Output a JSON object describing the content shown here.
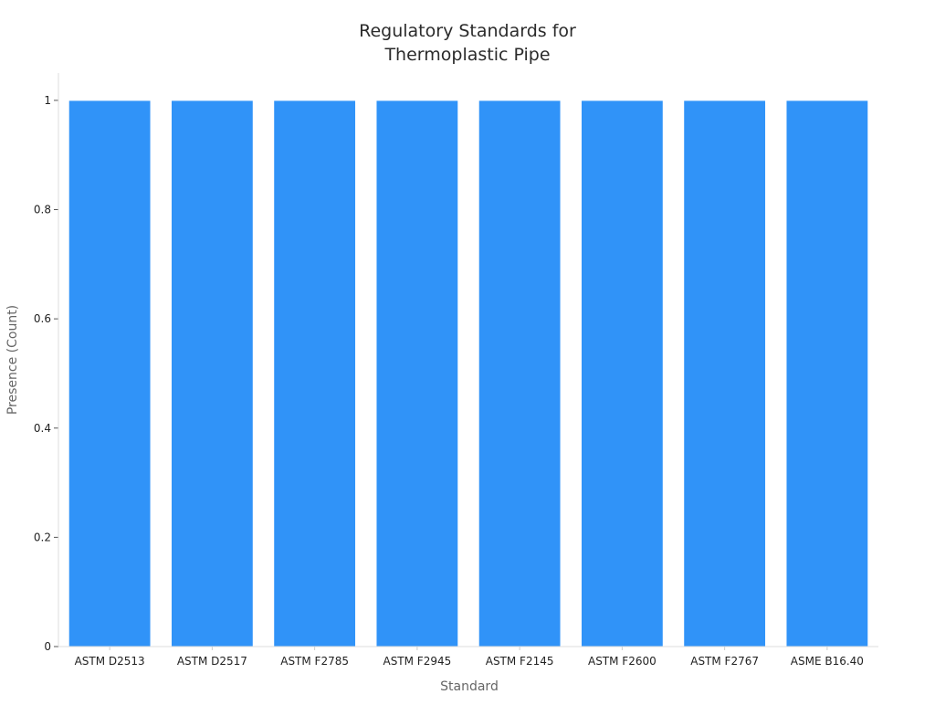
{
  "chart_data": {
    "type": "bar",
    "title_lines": [
      "Regulatory Standards for",
      "Thermoplastic Pipe"
    ],
    "xlabel": "Standard",
    "ylabel": "Presence (Count)",
    "categories": [
      "ASTM D2513",
      "ASTM D2517",
      "ASTM F2785",
      "ASTM F2945",
      "ASTM F2145",
      "ASTM F2600",
      "ASTM F2767",
      "ASME B16.40"
    ],
    "values": [
      1,
      1,
      1,
      1,
      1,
      1,
      1,
      1
    ],
    "ylim": [
      0,
      1.05
    ],
    "yticks": [
      0,
      0.2,
      0.4,
      0.6,
      0.8,
      1
    ],
    "ytick_labels": [
      "0",
      "0.2",
      "0.4",
      "0.6",
      "0.8",
      "1"
    ],
    "bar_color": "#3093f8",
    "grid": false,
    "legend": "none"
  }
}
